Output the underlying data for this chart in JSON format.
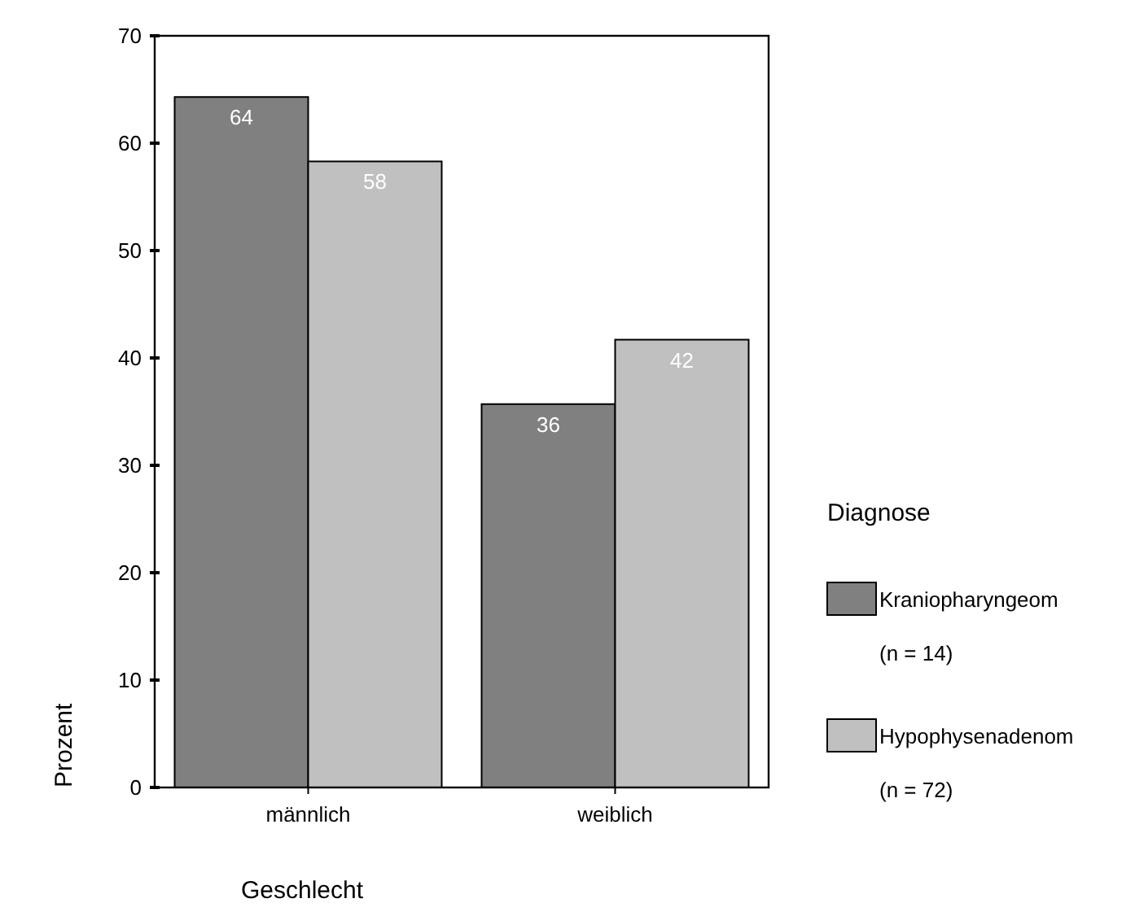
{
  "chart_data": {
    "type": "bar",
    "xlabel": "Geschlecht",
    "ylabel": "Prozent",
    "legend_title": "Diagnose",
    "categories": [
      "männlich",
      "weiblich"
    ],
    "series": [
      {
        "name": "Kraniopharyngeom",
        "color": "#808080",
        "values": [
          64.3,
          35.7
        ],
        "value_labels": [
          "64",
          "36"
        ]
      },
      {
        "name": "Hypophysenadenom",
        "color": "#c0c0c0",
        "values": [
          58.3,
          41.7
        ],
        "value_labels": [
          "58",
          "42"
        ]
      }
    ],
    "annotations": [
      "(n = 14)",
      "(n = 72)"
    ],
    "ylim": [
      0,
      70
    ],
    "yticks": [
      0,
      10,
      20,
      30,
      40,
      50,
      60,
      70
    ],
    "grid": false,
    "legend": "right"
  }
}
